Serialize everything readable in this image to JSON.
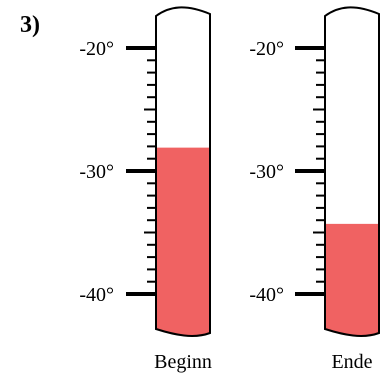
{
  "exercise_label": "3)",
  "thermometers": [
    {
      "caption": "Beginn",
      "temperature": -28.1,
      "tick_labels": [
        "-20°",
        "-30°",
        "-40°"
      ]
    },
    {
      "caption": "Ende",
      "temperature": -34.3,
      "tick_labels": [
        "-20°",
        "-30°",
        "-40°"
      ]
    }
  ],
  "scale": {
    "major_ticks": [
      -20,
      -30,
      -40
    ],
    "minor_step": 1
  },
  "colors": {
    "liquid": "#f06262",
    "outline": "#000000",
    "background": "#ffffff"
  }
}
